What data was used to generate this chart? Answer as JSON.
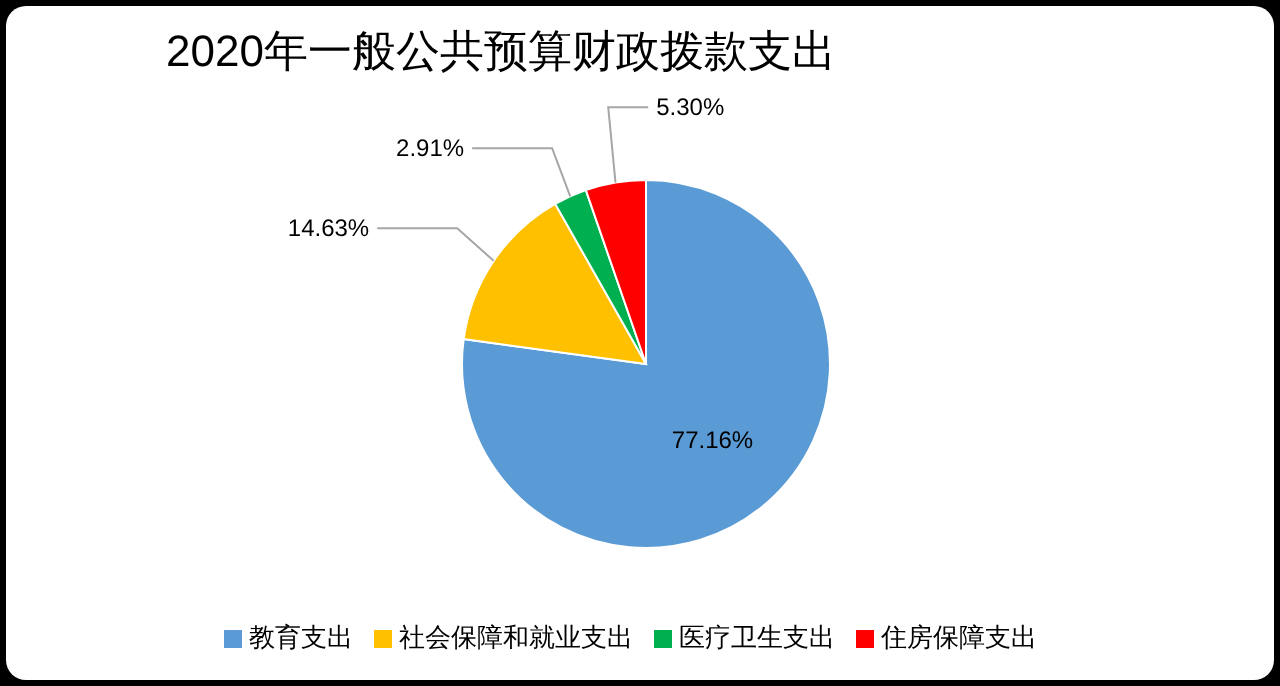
{
  "chart_data": {
    "type": "pie",
    "title": "2020年一般公共预算财政拨款支出",
    "categories": [
      "教育支出",
      "社会保障和就业支出",
      "医疗卫生支出",
      "住房保障支出"
    ],
    "values": [
      77.16,
      14.63,
      2.91,
      5.3
    ],
    "colors": [
      "#5b9bd5",
      "#ffc000",
      "#00b050",
      "#ff0000"
    ],
    "value_labels": [
      "77.16%",
      "14.63%",
      "2.91%",
      "5.30%"
    ],
    "legend": "bottom"
  }
}
